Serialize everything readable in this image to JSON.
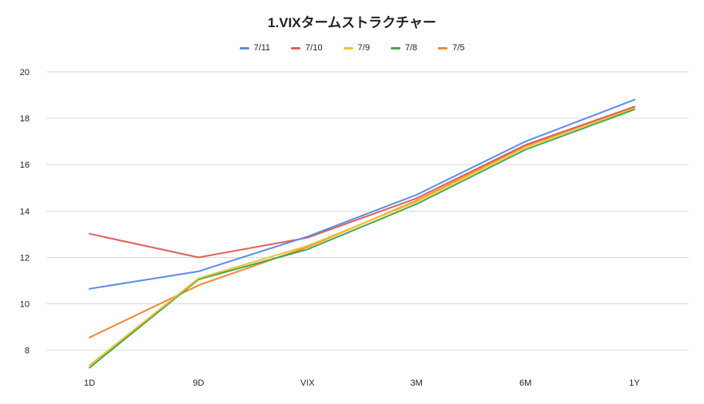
{
  "chart_data": {
    "type": "line",
    "title": "1.VIXタームストラクチャー",
    "categories": [
      "1D",
      "9D",
      "VIX",
      "3M",
      "6M",
      "1Y"
    ],
    "yticks": [
      8,
      10,
      12,
      14,
      16,
      18,
      20
    ],
    "ylim": [
      7.3,
      20
    ],
    "grid": true,
    "legend_position": "top-center",
    "series": [
      {
        "name": "7/11",
        "color": "#5b8ee6",
        "values": [
          10.65,
          11.4,
          12.9,
          14.7,
          17.0,
          18.8
        ]
      },
      {
        "name": "7/10",
        "color": "#e06055",
        "values": [
          13.02,
          12.0,
          12.85,
          14.55,
          16.85,
          18.5
        ]
      },
      {
        "name": "7/9",
        "color": "#f4c02b",
        "values": [
          7.35,
          11.1,
          12.5,
          14.4,
          16.75,
          18.45
        ]
      },
      {
        "name": "7/8",
        "color": "#43a753",
        "values": [
          7.25,
          11.05,
          12.35,
          14.3,
          16.65,
          18.38
        ]
      },
      {
        "name": "7/5",
        "color": "#f08a34",
        "values": [
          8.55,
          10.8,
          12.45,
          14.45,
          16.8,
          18.48
        ]
      }
    ]
  }
}
